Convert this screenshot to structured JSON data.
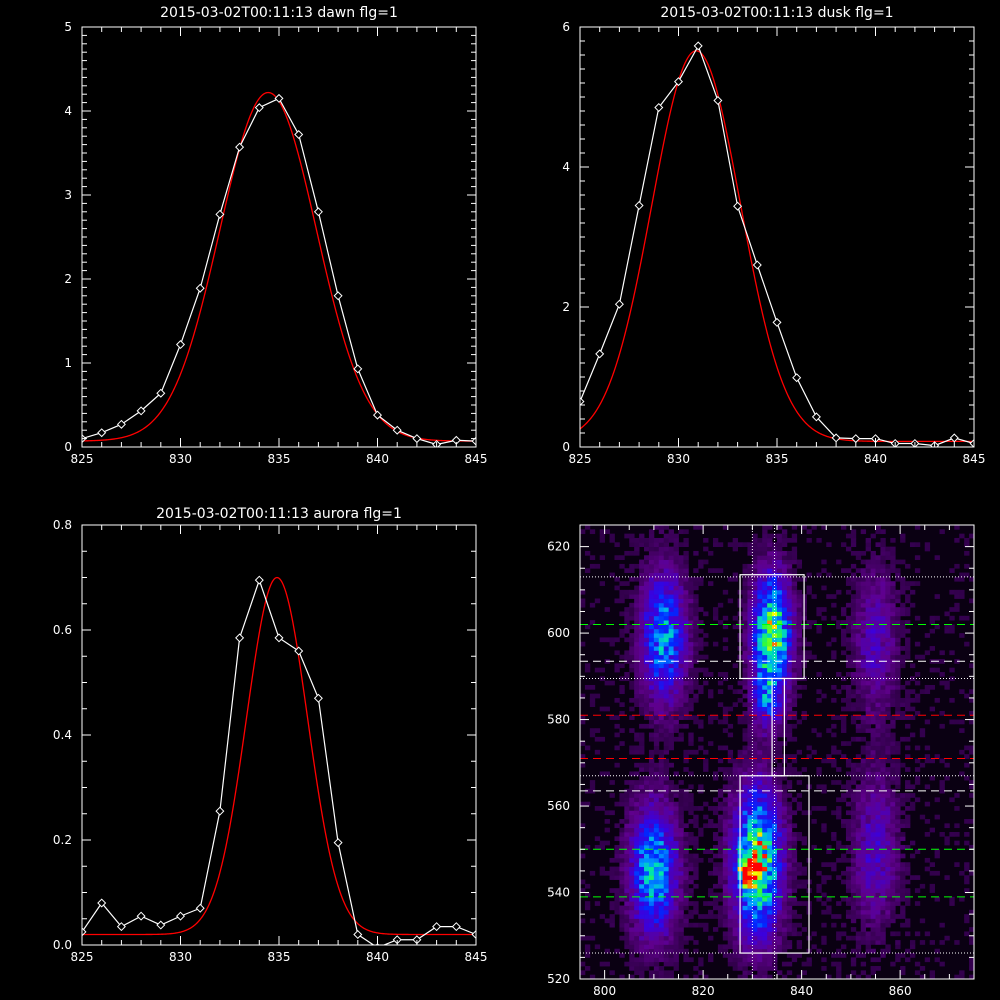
{
  "chart_data": [
    {
      "type": "line",
      "title": "2015-03-02T00:11:13 dawn flg=1",
      "xlim": [
        825,
        845
      ],
      "ylim": [
        0,
        5
      ],
      "xticks": [
        825,
        830,
        835,
        840,
        845
      ],
      "yticks": [
        0,
        1,
        2,
        3,
        4,
        5
      ],
      "minor_x": 1,
      "minor_y": 0.1,
      "series": [
        {
          "kind": "data",
          "color": "#ffffff",
          "marker": "diamond",
          "x": [
            825,
            826,
            827,
            828,
            829,
            830,
            831,
            832,
            833,
            834,
            835,
            836,
            837,
            838,
            839,
            840,
            841,
            842,
            843,
            844,
            845
          ],
          "y": [
            0.1,
            0.17,
            0.27,
            0.43,
            0.64,
            1.22,
            1.89,
            2.77,
            3.57,
            4.04,
            4.15,
            3.72,
            2.8,
            1.8,
            0.93,
            0.38,
            0.2,
            0.1,
            0.03,
            0.08,
            0.07
          ]
        },
        {
          "kind": "fit",
          "color": "#ff0000",
          "model": "gauss",
          "A": 4.15,
          "mu": 834.45,
          "sigma": 2.45,
          "c": 0.07
        }
      ]
    },
    {
      "type": "line",
      "title": "2015-03-02T00:11:13 dusk flg=1",
      "xlim": [
        825,
        845
      ],
      "ylim": [
        0,
        6
      ],
      "xticks": [
        825,
        830,
        835,
        840,
        845
      ],
      "yticks": [
        0,
        2,
        4,
        6
      ],
      "minor_x": 1,
      "minor_y": 0.2,
      "series": [
        {
          "kind": "data",
          "color": "#ffffff",
          "marker": "diamond",
          "x": [
            825,
            826,
            827,
            828,
            829,
            830,
            831,
            832,
            833,
            834,
            835,
            836,
            837,
            838,
            839,
            840,
            841,
            842,
            843,
            844,
            845
          ],
          "y": [
            0.65,
            1.33,
            2.04,
            3.45,
            4.85,
            5.22,
            5.73,
            4.95,
            3.44,
            2.6,
            1.78,
            0.99,
            0.43,
            0.13,
            0.12,
            0.12,
            0.05,
            0.05,
            0.02,
            0.13,
            0.05
          ]
        },
        {
          "kind": "fit",
          "color": "#ff0000",
          "model": "gauss",
          "A": 5.58,
          "mu": 830.9,
          "sigma": 2.25,
          "c": 0.08
        }
      ]
    },
    {
      "type": "line",
      "title": "2015-03-02T00:11:13 aurora flg=1",
      "xlim": [
        825,
        845
      ],
      "ylim": [
        0,
        0.8
      ],
      "xticks": [
        825,
        830,
        835,
        840,
        845
      ],
      "yticks": [
        0.0,
        0.2,
        0.4,
        0.6,
        0.8
      ],
      "minor_x": 1,
      "minor_y": 0.05,
      "series": [
        {
          "kind": "data",
          "color": "#ffffff",
          "marker": "diamond",
          "x": [
            825,
            826,
            827,
            828,
            829,
            830,
            831,
            832,
            833,
            834,
            835,
            836,
            837,
            838,
            839,
            840,
            841,
            842,
            843,
            844,
            845
          ],
          "y": [
            0.025,
            0.08,
            0.035,
            0.055,
            0.038,
            0.055,
            0.07,
            0.255,
            0.585,
            0.695,
            0.585,
            0.56,
            0.47,
            0.195,
            0.02,
            -0.005,
            0.01,
            0.01,
            0.035,
            0.035,
            0.02
          ]
        },
        {
          "kind": "fit",
          "color": "#ff0000",
          "model": "gauss",
          "A": 0.68,
          "mu": 834.9,
          "sigma": 1.55,
          "c": 0.02
        }
      ]
    },
    {
      "type": "heatmap",
      "title": "",
      "xlim": [
        795,
        875
      ],
      "ylim": [
        520,
        625
      ],
      "xticks": [
        800,
        820,
        840,
        860
      ],
      "yticks": [
        520,
        540,
        560,
        580,
        600,
        620
      ],
      "minor_x": 5,
      "minor_y": 5,
      "blobs": [
        {
          "x": 810,
          "y": 545,
          "sx": 3.2,
          "sy": 10,
          "amp": 0.55
        },
        {
          "x": 812,
          "y": 599,
          "sx": 3.0,
          "sy": 10,
          "amp": 0.5
        },
        {
          "x": 831,
          "y": 547,
          "sx": 3.2,
          "sy": 11,
          "amp": 0.8
        },
        {
          "x": 829,
          "y": 545,
          "sx": 1.2,
          "sy": 2,
          "amp": 0.55
        },
        {
          "x": 834,
          "y": 600,
          "sx": 2.6,
          "sy": 9,
          "amp": 0.75
        },
        {
          "x": 833,
          "y": 585,
          "sx": 2.0,
          "sy": 5,
          "amp": 0.3
        },
        {
          "x": 855,
          "y": 550,
          "sx": 3.0,
          "sy": 12,
          "amp": 0.22
        },
        {
          "x": 855,
          "y": 598,
          "sx": 3.0,
          "sy": 11,
          "amp": 0.2
        }
      ],
      "hlines": [
        {
          "y": 613,
          "color": "#ffffff",
          "style": "dotted"
        },
        {
          "y": 602,
          "color": "#00ff00",
          "style": "dashed"
        },
        {
          "y": 593.5,
          "color": "#ffffff",
          "style": "dashed"
        },
        {
          "y": 589.5,
          "color": "#ffffff",
          "style": "dotted"
        },
        {
          "y": 581,
          "color": "#ff0000",
          "style": "dashed"
        },
        {
          "y": 571,
          "color": "#ff0000",
          "style": "dashed"
        },
        {
          "y": 567,
          "color": "#ffffff",
          "style": "dotted"
        },
        {
          "y": 563.5,
          "color": "#ffffff",
          "style": "dashed"
        },
        {
          "y": 550,
          "color": "#00ff00",
          "style": "dashed"
        },
        {
          "y": 539,
          "color": "#00ff00",
          "style": "dashed"
        },
        {
          "y": 526,
          "color": "#ffffff",
          "style": "dotted"
        }
      ],
      "vlines": [
        {
          "x": 830,
          "color": "#ffffff",
          "style": "dotted"
        },
        {
          "x": 834.5,
          "color": "#ffffff",
          "style": "dotted"
        }
      ],
      "boxes": [
        {
          "x0": 827.5,
          "x1": 840.5,
          "y0": 589.5,
          "y1": 613.5
        },
        {
          "x0": 827.5,
          "x1": 841.5,
          "y0": 526,
          "y1": 567
        },
        {
          "x0": 834,
          "x1": 836.5,
          "y0": 567,
          "y1": 589.5
        }
      ]
    }
  ]
}
